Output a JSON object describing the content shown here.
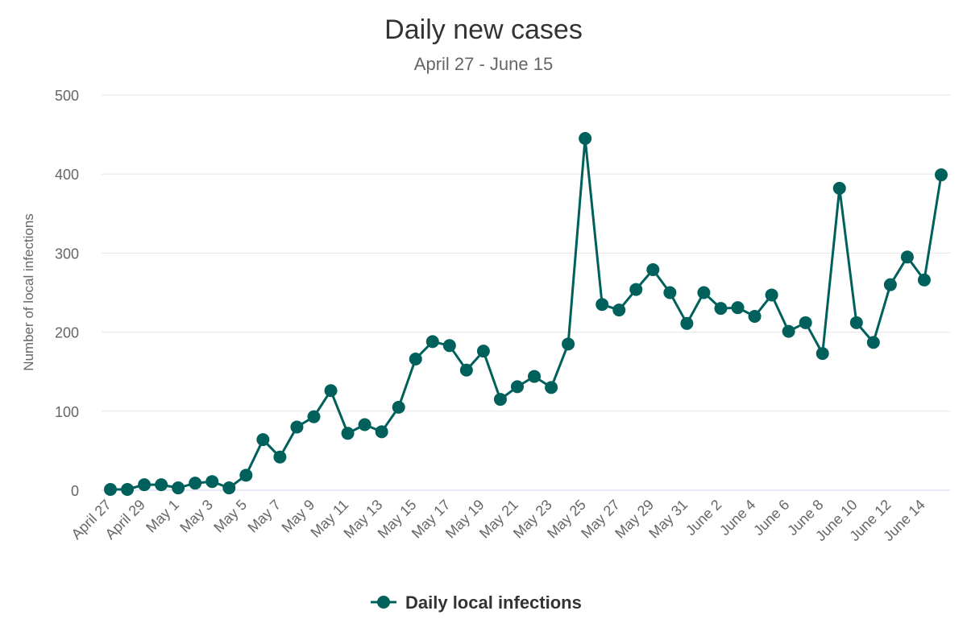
{
  "chart_data": {
    "type": "line",
    "title": "Daily new cases",
    "subtitle": "April 27 - June 15",
    "ylabel": "Number of local infections",
    "ylim": [
      0,
      500
    ],
    "yticks": [
      0,
      100,
      200,
      300,
      400,
      500
    ],
    "x": [
      "April 27",
      "April 28",
      "April 29",
      "April 30",
      "May 1",
      "May 2",
      "May 3",
      "May 4",
      "May 5",
      "May 6",
      "May 7",
      "May 8",
      "May 9",
      "May 10",
      "May 11",
      "May 12",
      "May 13",
      "May 14",
      "May 15",
      "May 16",
      "May 17",
      "May 18",
      "May 19",
      "May 20",
      "May 21",
      "May 22",
      "May 23",
      "May 24",
      "May 25",
      "May 26",
      "May 27",
      "May 28",
      "May 29",
      "May 30",
      "May 31",
      "June 1",
      "June 2",
      "June 3",
      "June 4",
      "June 5",
      "June 6",
      "June 7",
      "June 8",
      "June 9",
      "June 10",
      "June 11",
      "June 12",
      "June 13",
      "June 14",
      "June 15"
    ],
    "xtick_labels": [
      "April 27",
      "April 29",
      "May 1",
      "May 3",
      "May 5",
      "May 7",
      "May 9",
      "May 11",
      "May 13",
      "May 15",
      "May 17",
      "May 19",
      "May 21",
      "May 23",
      "May 25",
      "May 27",
      "May 29",
      "May 31",
      "June 2",
      "June 4",
      "June 6",
      "June 8",
      "June 10",
      "June 12",
      "June 14"
    ],
    "series": [
      {
        "name": "Daily local infections",
        "color": "#00605c",
        "values": [
          1,
          1,
          7,
          7,
          3,
          9,
          11,
          3,
          19,
          64,
          42,
          80,
          93,
          126,
          72,
          83,
          74,
          105,
          166,
          188,
          183,
          152,
          176,
          115,
          131,
          144,
          130,
          185,
          445,
          235,
          228,
          254,
          279,
          250,
          211,
          250,
          230,
          231,
          220,
          247,
          201,
          212,
          173,
          382,
          212,
          187,
          260,
          295,
          266,
          399
        ]
      }
    ],
    "grid": true,
    "legend": "bottom-center"
  }
}
